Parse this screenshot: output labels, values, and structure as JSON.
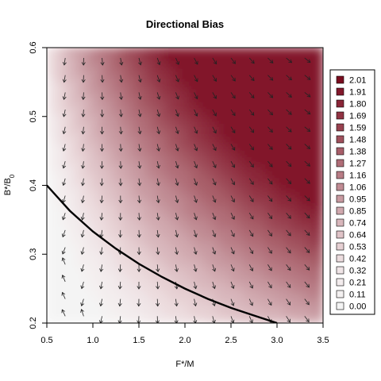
{
  "chart_data": {
    "type": "heatmap",
    "title": "Directional Bias",
    "xlabel": "F*/M",
    "ylabel": "B*/B0",
    "xlim": [
      0.5,
      3.5
    ],
    "ylim": [
      0.2,
      0.6
    ],
    "x_ticks": [
      0.5,
      1.0,
      1.5,
      2.0,
      2.5,
      3.0,
      3.5
    ],
    "x_tick_labels": [
      "0.5",
      "1.0",
      "1.5",
      "2.0",
      "2.5",
      "3.0",
      "3.5"
    ],
    "y_ticks": [
      0.2,
      0.3,
      0.4,
      0.5,
      0.6
    ],
    "y_tick_labels": [
      "0.2",
      "0.3",
      "0.4",
      "0.5",
      "0.6"
    ],
    "legend": {
      "position": "right",
      "levels": [
        "2.01",
        "1.91",
        "1.80",
        "1.69",
        "1.59",
        "1.48",
        "1.38",
        "1.27",
        "1.16",
        "1.06",
        "0.95",
        "0.85",
        "0.74",
        "0.64",
        "0.53",
        "0.42",
        "0.32",
        "0.21",
        "0.11",
        "0.00"
      ],
      "colors": [
        "#7a0d1f",
        "#82182b",
        "#8a2537",
        "#913343",
        "#98414f",
        "#a0505c",
        "#a85e69",
        "#b06d77",
        "#b87c85",
        "#c08b93",
        "#c89aa1",
        "#d0a8ae",
        "#d8b6bb",
        "#dfc3c7",
        "#e6d0d3",
        "#ecdcde",
        "#f0e5e7",
        "#f3eced",
        "#f4f1f1",
        "#f4f4f4"
      ]
    },
    "curve": {
      "x": [
        0.5,
        0.75,
        1.0,
        1.25,
        1.5,
        1.75,
        2.0,
        2.25,
        2.5,
        2.75,
        3.0
      ],
      "y": [
        0.4,
        0.363,
        0.333,
        0.308,
        0.286,
        0.267,
        0.25,
        0.235,
        0.222,
        0.211,
        0.2
      ]
    },
    "arrow_grid": {
      "x": [
        0.7,
        0.9,
        1.1,
        1.3,
        1.5,
        1.7,
        1.9,
        2.1,
        2.3,
        2.5,
        2.7,
        2.9,
        3.1,
        3.3
      ],
      "y": [
        0.21,
        0.235,
        0.26,
        0.285,
        0.31,
        0.335,
        0.36,
        0.385,
        0.41,
        0.435,
        0.46,
        0.485,
        0.51,
        0.535,
        0.56,
        0.585
      ]
    }
  }
}
